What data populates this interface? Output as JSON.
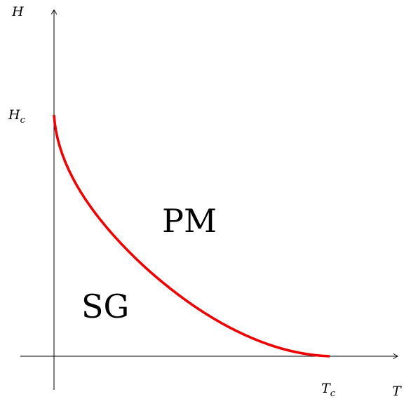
{
  "axes": {
    "y_label": "H",
    "x_label": "T"
  },
  "markers": {
    "critical_field": {
      "base": "H",
      "sub": "c"
    },
    "critical_temperature": {
      "base": "T",
      "sub": "c"
    }
  },
  "regions": {
    "upper": "PM",
    "lower": "SG"
  },
  "colors": {
    "boundary": "#ee0000",
    "axes": "#000000"
  }
}
